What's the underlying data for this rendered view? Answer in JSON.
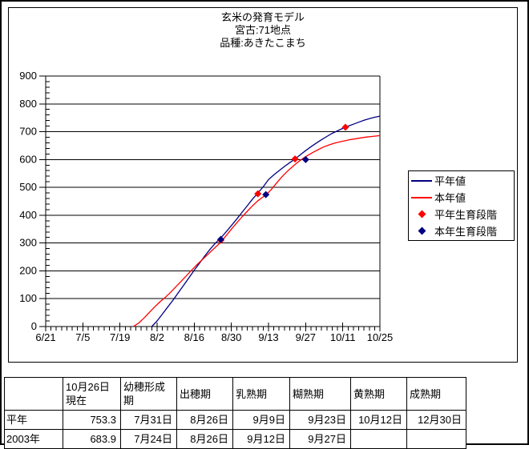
{
  "colors": {
    "normal_year_line": "#000080",
    "this_year_line": "#ff0000",
    "normal_stage_marker": "#ff0000",
    "this_year_stage_marker": "#000080",
    "axis": "#000000",
    "background": "#ffffff"
  },
  "chart": {
    "title_lines": [
      "玄米の発育モデル",
      "宮古:71地点",
      "品種:あきたこまち"
    ],
    "legend": {
      "items": [
        {
          "label": "平年値",
          "type": "line",
          "color": "#000080"
        },
        {
          "label": "本年値",
          "type": "line",
          "color": "#ff0000"
        },
        {
          "label": "平年生育段階",
          "type": "diamond",
          "color": "#ff0000"
        },
        {
          "label": "本年生育段階",
          "type": "diamond",
          "color": "#000080"
        }
      ]
    }
  },
  "chart_data": {
    "type": "line",
    "title": "玄米の発育モデル 宮古:71地点 品種:あきたこまち",
    "xlabel": "",
    "ylabel": "",
    "x_axis": {
      "tick_labels": [
        "6/21",
        "7/5",
        "7/19",
        "8/2",
        "8/16",
        "8/30",
        "9/13",
        "9/27",
        "10/11",
        "10/25"
      ],
      "tick_interval_days": 14,
      "minor_tick_days": 2,
      "total_days": 126
    },
    "y_axis": {
      "min": 0,
      "max": 900,
      "tick_step": 100,
      "minor_tick_step": 20
    },
    "grid": "horizontal",
    "legend_position": "right",
    "series": [
      {
        "name": "平年値",
        "type": "line",
        "color": "#000080",
        "points_day_value": [
          [
            40,
            0
          ],
          [
            42,
            20
          ],
          [
            44,
            45
          ],
          [
            46,
            70
          ],
          [
            48,
            95
          ],
          [
            50,
            122
          ],
          [
            52,
            148
          ],
          [
            54,
            175
          ],
          [
            56,
            202
          ],
          [
            58,
            228
          ],
          [
            60,
            254
          ],
          [
            62,
            278
          ],
          [
            64,
            300
          ],
          [
            66,
            318
          ],
          [
            68,
            340
          ],
          [
            70,
            363
          ],
          [
            72,
            386
          ],
          [
            74,
            410
          ],
          [
            76,
            434
          ],
          [
            78,
            458
          ],
          [
            80,
            480
          ],
          [
            82,
            502
          ],
          [
            84,
            528
          ],
          [
            86,
            545
          ],
          [
            88,
            560
          ],
          [
            90,
            575
          ],
          [
            92,
            589
          ],
          [
            94,
            602
          ],
          [
            96,
            617
          ],
          [
            98,
            632
          ],
          [
            100,
            646
          ],
          [
            102,
            659
          ],
          [
            104,
            671
          ],
          [
            106,
            683
          ],
          [
            108,
            694
          ],
          [
            110,
            703
          ],
          [
            112,
            712
          ],
          [
            114,
            720
          ],
          [
            116,
            727
          ],
          [
            118,
            734
          ],
          [
            120,
            741
          ],
          [
            122,
            747
          ],
          [
            124,
            752
          ],
          [
            126,
            756
          ]
        ]
      },
      {
        "name": "本年値",
        "type": "line",
        "color": "#ff0000",
        "points_day_value": [
          [
            33,
            0
          ],
          [
            35,
            12
          ],
          [
            37,
            30
          ],
          [
            39,
            50
          ],
          [
            41,
            70
          ],
          [
            43,
            88
          ],
          [
            45,
            104
          ],
          [
            47,
            122
          ],
          [
            49,
            142
          ],
          [
            51,
            162
          ],
          [
            53,
            182
          ],
          [
            55,
            202
          ],
          [
            57,
            222
          ],
          [
            59,
            240
          ],
          [
            61,
            258
          ],
          [
            63,
            276
          ],
          [
            65,
            294
          ],
          [
            66,
            303
          ],
          [
            68,
            326
          ],
          [
            70,
            350
          ],
          [
            72,
            372
          ],
          [
            74,
            394
          ],
          [
            76,
            414
          ],
          [
            78,
            434
          ],
          [
            80,
            452
          ],
          [
            82,
            466
          ],
          [
            83,
            472
          ],
          [
            85,
            492
          ],
          [
            87,
            515
          ],
          [
            89,
            537
          ],
          [
            91,
            557
          ],
          [
            93,
            574
          ],
          [
            95,
            590
          ],
          [
            97,
            604
          ],
          [
            99,
            616
          ],
          [
            101,
            627
          ],
          [
            103,
            637
          ],
          [
            105,
            646
          ],
          [
            107,
            653
          ],
          [
            109,
            659
          ],
          [
            111,
            664
          ],
          [
            113,
            668
          ],
          [
            115,
            672
          ],
          [
            117,
            675
          ],
          [
            119,
            678
          ],
          [
            121,
            681
          ],
          [
            123,
            683
          ],
          [
            126,
            686
          ]
        ]
      },
      {
        "name": "平年生育段階",
        "type": "diamond-markers",
        "color": "#ff0000",
        "markers": [
          {
            "date": "8/26",
            "day": 66,
            "value": 310
          },
          {
            "date": "9/9",
            "day": 80,
            "value": 477
          },
          {
            "date": "9/23",
            "day": 94,
            "value": 602
          },
          {
            "date": "10/12",
            "day": 113,
            "value": 716
          }
        ]
      },
      {
        "name": "本年生育段階",
        "type": "diamond-markers",
        "color": "#000080",
        "markers": [
          {
            "date": "8/26",
            "day": 66,
            "value": 313
          },
          {
            "date": "9/12",
            "day": 83,
            "value": 474
          },
          {
            "date": "9/27",
            "day": 98,
            "value": 600
          }
        ]
      }
    ]
  },
  "table": {
    "headers": [
      "",
      "10月26日現在",
      "幼穂形成期",
      "出穂期",
      "乳熟期",
      "糊熟期",
      "黄熟期",
      "成熟期"
    ],
    "rows": [
      [
        "平年",
        "753.3",
        "7月31日",
        "8月26日",
        "9月9日",
        "9月23日",
        "10月12日",
        "12月30日"
      ],
      [
        "2003年",
        "683.9",
        "7月24日",
        "8月26日",
        "9月12日",
        "9月27日",
        "",
        ""
      ]
    ]
  }
}
